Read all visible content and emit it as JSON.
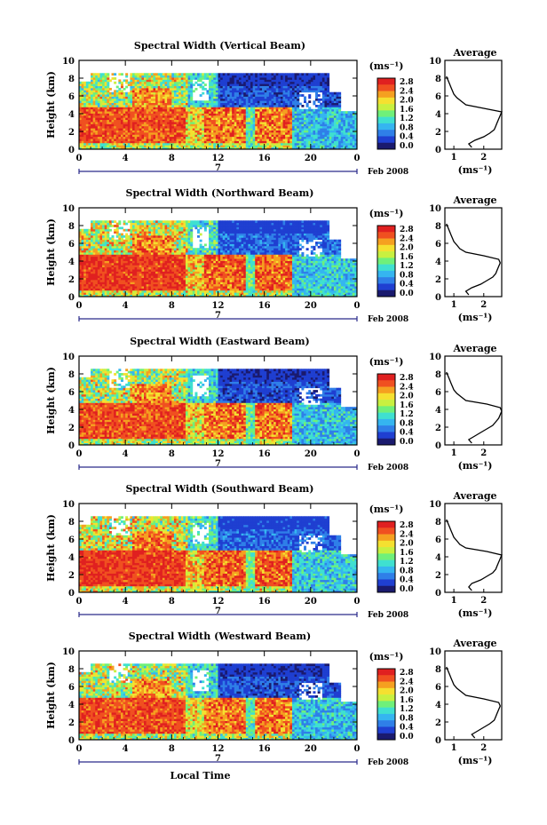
{
  "figure": {
    "colorbar_unit": "(ms⁻¹)",
    "colorbar_ticks": [
      "2.8",
      "2.4",
      "2.0",
      "1.6",
      "1.2",
      "0.8",
      "0.4",
      "0.0"
    ],
    "x_ticks": [
      "0",
      "4",
      "8",
      "12",
      "16",
      "20",
      "0"
    ],
    "x_day_label": "7",
    "x_month_label": "Feb 2008",
    "y_label": "Height (km)",
    "y_ticks": [
      "0",
      "2",
      "4",
      "6",
      "8",
      "10"
    ],
    "avg_title": "Average",
    "avg_xlabel": "(ms⁻¹)",
    "avg_x_ticks": [
      "1",
      "2"
    ],
    "bottom_xlabel": "Local Time",
    "colorscale": [
      "#1a1a6e",
      "#1f3fd1",
      "#2f7fe8",
      "#35b5f0",
      "#3fe0d0",
      "#6ff07a",
      "#c8f040",
      "#f5e030",
      "#f5a020",
      "#f05020",
      "#e02020"
    ]
  },
  "chart_data": [
    {
      "type": "heatmap",
      "title": "Spectral Width (Vertical Beam)",
      "ylabel": "Height (km)",
      "xlabel": "",
      "x_range_hours": [
        0,
        24
      ],
      "y_range_km": [
        0,
        10
      ],
      "color_range": [
        0.0,
        2.8
      ],
      "grid": false,
      "avg_profile": {
        "title": "Average",
        "xlim": [
          0.7,
          2.6
        ],
        "ylim": [
          0,
          10
        ],
        "height_km": [
          0.2,
          0.6,
          1.0,
          1.4,
          1.8,
          2.2,
          2.6,
          3.0,
          3.4,
          3.8,
          4.2,
          4.6,
          5.0,
          5.4,
          5.8,
          6.2,
          6.6,
          7.0,
          7.4,
          7.8,
          8.2
        ],
        "width_ms": [
          1.6,
          1.5,
          1.7,
          2.0,
          2.2,
          2.35,
          2.4,
          2.45,
          2.5,
          2.55,
          2.6,
          2.0,
          1.4,
          1.25,
          1.1,
          1.0,
          0.95,
          0.9,
          0.85,
          0.8,
          0.75
        ]
      }
    },
    {
      "type": "heatmap",
      "title": "Spectral Width (Northward Beam)",
      "ylabel": "Height (km)",
      "xlabel": "",
      "x_range_hours": [
        0,
        24
      ],
      "y_range_km": [
        0,
        10
      ],
      "color_range": [
        0.0,
        2.8
      ],
      "grid": false,
      "avg_profile": {
        "title": "Average",
        "xlim": [
          0.7,
          2.6
        ],
        "ylim": [
          0,
          10
        ],
        "height_km": [
          0.2,
          0.6,
          1.0,
          1.4,
          1.8,
          2.2,
          2.6,
          3.0,
          3.4,
          3.8,
          4.2,
          4.6,
          5.0,
          5.4,
          5.8,
          6.2,
          6.6,
          7.0,
          7.4,
          7.8,
          8.2
        ],
        "width_ms": [
          1.5,
          1.4,
          1.6,
          1.9,
          2.1,
          2.3,
          2.4,
          2.45,
          2.5,
          2.55,
          2.5,
          2.0,
          1.4,
          1.2,
          1.1,
          1.0,
          0.95,
          0.9,
          0.85,
          0.8,
          0.75
        ]
      }
    },
    {
      "type": "heatmap",
      "title": "Spectral Width (Eastward Beam)",
      "ylabel": "Height (km)",
      "xlabel": "",
      "x_range_hours": [
        0,
        24
      ],
      "y_range_km": [
        0,
        10
      ],
      "color_range": [
        0.0,
        2.8
      ],
      "grid": false,
      "avg_profile": {
        "title": "Average",
        "xlim": [
          0.7,
          2.6
        ],
        "ylim": [
          0,
          10
        ],
        "height_km": [
          0.2,
          0.6,
          1.0,
          1.4,
          1.8,
          2.2,
          2.6,
          3.0,
          3.4,
          3.8,
          4.2,
          4.6,
          5.0,
          5.4,
          5.8,
          6.2,
          6.6,
          7.0,
          7.4,
          7.8,
          8.2
        ],
        "width_ms": [
          1.6,
          1.5,
          1.7,
          1.9,
          2.1,
          2.3,
          2.4,
          2.5,
          2.55,
          2.6,
          2.55,
          2.1,
          1.4,
          1.25,
          1.1,
          1.0,
          0.95,
          0.9,
          0.85,
          0.8,
          0.75
        ]
      }
    },
    {
      "type": "heatmap",
      "title": "Spectral Width (Southward Beam)",
      "ylabel": "Height (km)",
      "xlabel": "",
      "x_range_hours": [
        0,
        24
      ],
      "y_range_km": [
        0,
        10
      ],
      "color_range": [
        0.0,
        2.8
      ],
      "grid": false,
      "avg_profile": {
        "title": "Average",
        "xlim": [
          0.7,
          2.6
        ],
        "ylim": [
          0,
          10
        ],
        "height_km": [
          0.2,
          0.6,
          1.0,
          1.4,
          1.8,
          2.2,
          2.6,
          3.0,
          3.4,
          3.8,
          4.2,
          4.6,
          5.0,
          5.4,
          5.8,
          6.2,
          6.6,
          7.0,
          7.4,
          7.8,
          8.2
        ],
        "width_ms": [
          1.6,
          1.5,
          1.6,
          1.9,
          2.1,
          2.3,
          2.4,
          2.45,
          2.5,
          2.55,
          2.6,
          2.1,
          1.4,
          1.2,
          1.1,
          1.0,
          0.95,
          0.9,
          0.85,
          0.8,
          0.75
        ]
      }
    },
    {
      "type": "heatmap",
      "title": "Spectral Width (Westward Beam)",
      "ylabel": "Height (km)",
      "xlabel": "Local Time",
      "x_range_hours": [
        0,
        24
      ],
      "y_range_km": [
        0,
        10
      ],
      "color_range": [
        0.0,
        2.8
      ],
      "grid": false,
      "avg_profile": {
        "title": "Average",
        "xlim": [
          0.7,
          2.6
        ],
        "ylim": [
          0,
          10
        ],
        "height_km": [
          0.2,
          0.6,
          1.0,
          1.4,
          1.8,
          2.2,
          2.6,
          3.0,
          3.4,
          3.8,
          4.2,
          4.6,
          5.0,
          5.4,
          5.8,
          6.2,
          6.6,
          7.0,
          7.4,
          7.8,
          8.2
        ],
        "width_ms": [
          1.7,
          1.6,
          1.8,
          2.0,
          2.2,
          2.35,
          2.4,
          2.45,
          2.5,
          2.55,
          2.5,
          2.0,
          1.4,
          1.25,
          1.1,
          1.0,
          0.95,
          0.9,
          0.85,
          0.8,
          0.75
        ]
      }
    }
  ]
}
